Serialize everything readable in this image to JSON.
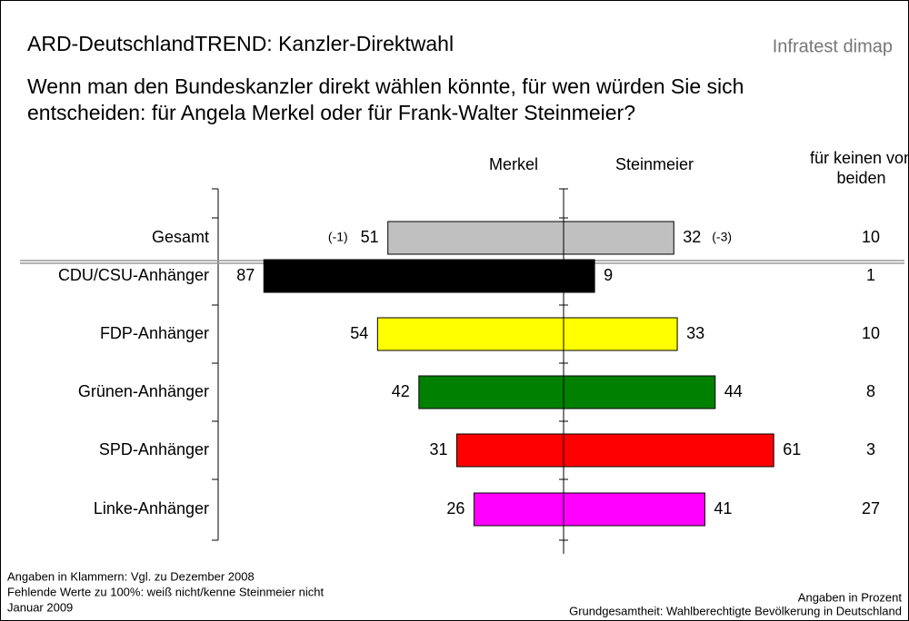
{
  "brand": "Infratest dimap",
  "chart_data": {
    "type": "diverging_bar",
    "title": "ARD-DeutschlandTREND: Kanzler-Direktwahl",
    "subtitle": [
      "Wenn man den Bundeskanzler direkt wählen könnte, für wen würden Sie sich",
      "entscheiden: für Angela Merkel oder für Frank-Walter Steinmeier?"
    ],
    "categories": [
      "Gesamt",
      "CDU/CSU-Anhänger",
      "FDP-Anhänger",
      "Grünen-Anhänger",
      "SPD-Anhänger",
      "Linke-Anhänger"
    ],
    "colors": [
      "#c0c0c0",
      "#000000",
      "#ffff00",
      "#008000",
      "#ff0000",
      "#ff00ff"
    ],
    "series": [
      {
        "name": "Merkel",
        "values": [
          51,
          87,
          54,
          42,
          31,
          26
        ]
      },
      {
        "name": "Steinmeier",
        "values": [
          32,
          9,
          33,
          44,
          61,
          41
        ]
      },
      {
        "name": "für keinen von beiden",
        "values": [
          10,
          1,
          10,
          8,
          3,
          27
        ]
      }
    ],
    "annotations": [
      "(-1)",
      "(-3)"
    ],
    "notes_left": [
      "Angaben in Klammern: Vgl. zu Dezember 2008",
      "Fehlende Werte zu 100%: weiß nicht/kenne Steinmeier nicht",
      "Januar 2009"
    ],
    "notes_right": [
      "Angaben in Prozent",
      "Grundgesamtheit: Wahlberechtigte Bevölkerung in Deutschland"
    ]
  }
}
